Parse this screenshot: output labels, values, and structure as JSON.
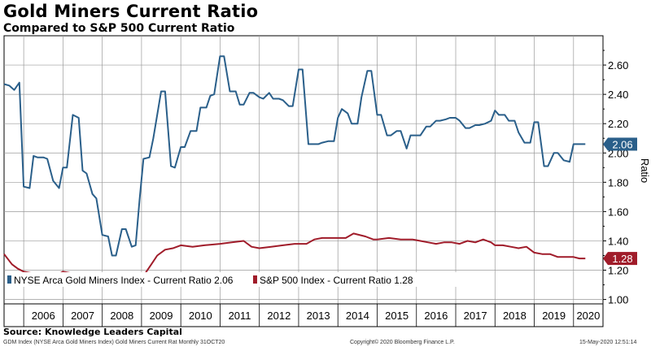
{
  "title": "Gold Miners Current Ratio",
  "subtitle": "Compared to S&P 500 Current Ratio",
  "source": "Source: Knowledge Leaders Capital",
  "footer": {
    "left": "GDM Index (NYSE Arca Gold Miners Index) Gold Miners Current Rat  Monthly 31OCT20",
    "center": "Copyright© 2020 Bloomberg Finance L.P.",
    "right": "15-May-2020 12:51:14"
  },
  "chart_data": {
    "type": "line",
    "ylabel": "Ratio",
    "ylim": [
      0.97,
      2.8
    ],
    "yticks": [
      1.0,
      1.2,
      1.4,
      1.6,
      1.8,
      2.0,
      2.2,
      2.4,
      2.6
    ],
    "ytick_labels": [
      "1.00",
      "1.20",
      "1.40",
      "1.60",
      "1.80",
      "2.00",
      "2.20",
      "2.40",
      "2.60"
    ],
    "xlim": [
      2005.5,
      2020.75
    ],
    "year_labels": [
      "2006",
      "2007",
      "2008",
      "2009",
      "2010",
      "2011",
      "2012",
      "2013",
      "2014",
      "2015",
      "2016",
      "2017",
      "2018",
      "2019",
      "2020"
    ],
    "grid": true,
    "legend_position": "bottom-left",
    "series": [
      {
        "name": "NYSE Arca Gold Miners Index - Current Ratio 2.06",
        "last_label": "2.06",
        "color": "#2a5f8a",
        "x": [
          2005.5,
          2005.63,
          2005.76,
          2005.89,
          2006.0,
          2006.15,
          2006.25,
          2006.35,
          2006.5,
          2006.6,
          2006.75,
          2006.9,
          2007.0,
          2007.1,
          2007.25,
          2007.4,
          2007.5,
          2007.6,
          2007.75,
          2007.85,
          2008.0,
          2008.15,
          2008.25,
          2008.35,
          2008.5,
          2008.6,
          2008.75,
          2008.85,
          2008.95,
          2009.05,
          2009.2,
          2009.3,
          2009.5,
          2009.6,
          2009.75,
          2009.85,
          2010.0,
          2010.1,
          2010.25,
          2010.4,
          2010.5,
          2010.65,
          2010.75,
          2010.85,
          2011.0,
          2011.1,
          2011.25,
          2011.4,
          2011.5,
          2011.6,
          2011.75,
          2011.85,
          2012.0,
          2012.1,
          2012.25,
          2012.35,
          2012.5,
          2012.6,
          2012.75,
          2012.85,
          2013.0,
          2013.1,
          2013.25,
          2013.35,
          2013.5,
          2013.6,
          2013.75,
          2013.9,
          2014.0,
          2014.1,
          2014.25,
          2014.35,
          2014.5,
          2014.6,
          2014.75,
          2014.85,
          2015.0,
          2015.1,
          2015.25,
          2015.35,
          2015.5,
          2015.6,
          2015.75,
          2015.85,
          2016.0,
          2016.1,
          2016.25,
          2016.35,
          2016.5,
          2016.6,
          2016.75,
          2016.85,
          2017.0,
          2017.1,
          2017.25,
          2017.35,
          2017.5,
          2017.6,
          2017.75,
          2017.9,
          2018.0,
          2018.1,
          2018.25,
          2018.35,
          2018.5,
          2018.6,
          2018.75,
          2018.9,
          2019.0,
          2019.1,
          2019.25,
          2019.35,
          2019.5,
          2019.6,
          2019.75,
          2019.9,
          2020.0,
          2020.1,
          2020.3
        ],
        "y": [
          2.47,
          2.46,
          2.43,
          2.48,
          1.77,
          1.76,
          1.98,
          1.97,
          1.97,
          1.96,
          1.81,
          1.76,
          1.9,
          1.9,
          2.26,
          2.24,
          1.88,
          1.86,
          1.72,
          1.69,
          1.44,
          1.43,
          1.3,
          1.3,
          1.48,
          1.48,
          1.36,
          1.37,
          1.68,
          1.96,
          1.97,
          2.1,
          2.42,
          2.42,
          1.91,
          1.9,
          2.04,
          2.04,
          2.15,
          2.15,
          2.31,
          2.31,
          2.39,
          2.4,
          2.66,
          2.66,
          2.42,
          2.42,
          2.33,
          2.33,
          2.41,
          2.41,
          2.38,
          2.37,
          2.41,
          2.37,
          2.37,
          2.36,
          2.32,
          2.32,
          2.57,
          2.57,
          2.06,
          2.06,
          2.06,
          2.07,
          2.08,
          2.08,
          2.24,
          2.3,
          2.27,
          2.2,
          2.2,
          2.38,
          2.56,
          2.56,
          2.26,
          2.26,
          2.12,
          2.12,
          2.15,
          2.15,
          2.03,
          2.12,
          2.12,
          2.12,
          2.18,
          2.18,
          2.22,
          2.22,
          2.23,
          2.24,
          2.24,
          2.22,
          2.17,
          2.17,
          2.19,
          2.19,
          2.2,
          2.22,
          2.29,
          2.26,
          2.26,
          2.22,
          2.22,
          2.14,
          2.07,
          2.07,
          2.21,
          2.21,
          1.91,
          1.91,
          2.0,
          2.0,
          1.95,
          1.94,
          2.06,
          2.06,
          2.06
        ]
      },
      {
        "name": "S&P 500 Index - Current Ratio 1.28",
        "last_label": "1.28",
        "color": "#a01c2a",
        "x": [
          2005.5,
          2005.7,
          2005.85,
          2006.0,
          2006.2,
          2006.4,
          2006.6,
          2006.8,
          2007.0,
          2007.2,
          2007.4,
          2007.6,
          2007.8,
          2008.0,
          2008.3,
          2008.6,
          2008.9,
          2009.1,
          2009.25,
          2009.4,
          2009.6,
          2009.8,
          2010.0,
          2010.3,
          2010.6,
          2011.0,
          2011.3,
          2011.6,
          2011.8,
          2012.0,
          2012.3,
          2012.6,
          2012.9,
          2013.2,
          2013.4,
          2013.6,
          2013.8,
          2014.0,
          2014.2,
          2014.4,
          2014.7,
          2014.9,
          2015.0,
          2015.3,
          2015.6,
          2015.9,
          2016.1,
          2016.3,
          2016.5,
          2016.7,
          2016.9,
          2017.1,
          2017.3,
          2017.5,
          2017.7,
          2017.9,
          2018.0,
          2018.2,
          2018.4,
          2018.6,
          2018.8,
          2019.0,
          2019.2,
          2019.4,
          2019.6,
          2019.8,
          2020.0,
          2020.15,
          2020.3
        ],
        "y": [
          1.31,
          1.24,
          1.21,
          1.19,
          1.18,
          1.17,
          1.17,
          1.16,
          1.19,
          1.18,
          1.17,
          1.18,
          1.15,
          1.14,
          1.14,
          1.15,
          1.18,
          1.18,
          1.24,
          1.3,
          1.34,
          1.35,
          1.37,
          1.36,
          1.37,
          1.38,
          1.39,
          1.4,
          1.36,
          1.35,
          1.36,
          1.37,
          1.38,
          1.38,
          1.41,
          1.42,
          1.42,
          1.42,
          1.42,
          1.45,
          1.43,
          1.41,
          1.41,
          1.42,
          1.41,
          1.41,
          1.4,
          1.39,
          1.38,
          1.39,
          1.39,
          1.38,
          1.4,
          1.39,
          1.41,
          1.39,
          1.37,
          1.37,
          1.36,
          1.35,
          1.36,
          1.32,
          1.31,
          1.31,
          1.29,
          1.29,
          1.29,
          1.28,
          1.28
        ]
      }
    ]
  }
}
